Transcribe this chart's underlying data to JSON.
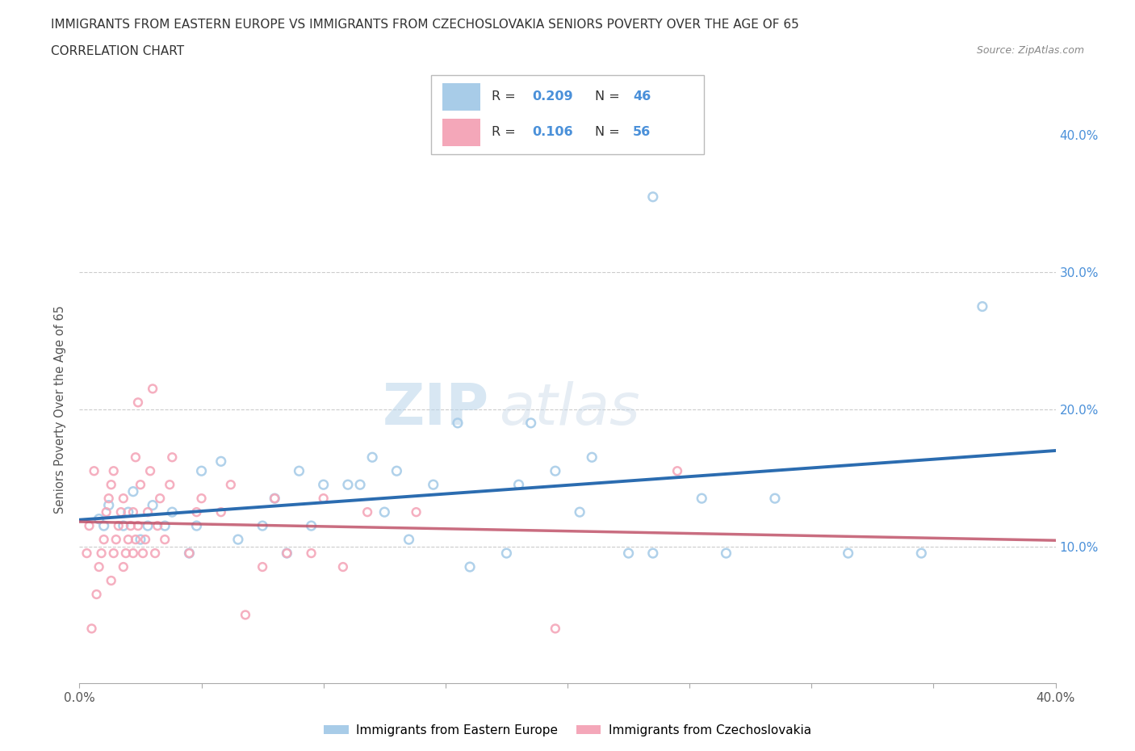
{
  "title_line1": "IMMIGRANTS FROM EASTERN EUROPE VS IMMIGRANTS FROM CZECHOSLOVAKIA SENIORS POVERTY OVER THE AGE OF 65",
  "title_line2": "CORRELATION CHART",
  "source": "Source: ZipAtlas.com",
  "ylabel": "Seniors Poverty Over the Age of 65",
  "xlim": [
    0.0,
    0.4
  ],
  "ylim": [
    0.0,
    0.4
  ],
  "blue_color": "#a8cce8",
  "pink_color": "#f4a7b9",
  "blue_line_color": "#2b6cb0",
  "pink_line_color": "#c0546a",
  "blue_R": 0.209,
  "blue_N": 46,
  "pink_R": 0.106,
  "pink_N": 56,
  "watermark_zip": "ZIP",
  "watermark_atlas": "atlas",
  "legend_label_blue": "Immigrants from Eastern Europe",
  "legend_label_pink": "Immigrants from Czechoslovakia",
  "blue_scatter": [
    [
      0.008,
      0.12
    ],
    [
      0.01,
      0.115
    ],
    [
      0.012,
      0.13
    ],
    [
      0.018,
      0.115
    ],
    [
      0.02,
      0.125
    ],
    [
      0.022,
      0.14
    ],
    [
      0.025,
      0.105
    ],
    [
      0.028,
      0.115
    ],
    [
      0.03,
      0.13
    ],
    [
      0.035,
      0.115
    ],
    [
      0.038,
      0.125
    ],
    [
      0.045,
      0.095
    ],
    [
      0.048,
      0.115
    ],
    [
      0.05,
      0.155
    ],
    [
      0.058,
      0.162
    ],
    [
      0.065,
      0.105
    ],
    [
      0.075,
      0.115
    ],
    [
      0.08,
      0.135
    ],
    [
      0.085,
      0.095
    ],
    [
      0.09,
      0.155
    ],
    [
      0.095,
      0.115
    ],
    [
      0.1,
      0.145
    ],
    [
      0.11,
      0.145
    ],
    [
      0.115,
      0.145
    ],
    [
      0.12,
      0.165
    ],
    [
      0.125,
      0.125
    ],
    [
      0.13,
      0.155
    ],
    [
      0.135,
      0.105
    ],
    [
      0.145,
      0.145
    ],
    [
      0.155,
      0.19
    ],
    [
      0.16,
      0.085
    ],
    [
      0.175,
      0.095
    ],
    [
      0.18,
      0.145
    ],
    [
      0.185,
      0.19
    ],
    [
      0.195,
      0.155
    ],
    [
      0.205,
      0.125
    ],
    [
      0.21,
      0.165
    ],
    [
      0.225,
      0.095
    ],
    [
      0.235,
      0.095
    ],
    [
      0.255,
      0.135
    ],
    [
      0.265,
      0.095
    ],
    [
      0.285,
      0.135
    ],
    [
      0.315,
      0.095
    ],
    [
      0.345,
      0.095
    ],
    [
      0.235,
      0.355
    ],
    [
      0.37,
      0.275
    ]
  ],
  "pink_scatter": [
    [
      0.003,
      0.095
    ],
    [
      0.004,
      0.115
    ],
    [
      0.005,
      0.04
    ],
    [
      0.006,
      0.155
    ],
    [
      0.007,
      0.065
    ],
    [
      0.008,
      0.085
    ],
    [
      0.009,
      0.095
    ],
    [
      0.01,
      0.105
    ],
    [
      0.011,
      0.125
    ],
    [
      0.012,
      0.135
    ],
    [
      0.013,
      0.145
    ],
    [
      0.014,
      0.155
    ],
    [
      0.013,
      0.075
    ],
    [
      0.014,
      0.095
    ],
    [
      0.015,
      0.105
    ],
    [
      0.016,
      0.115
    ],
    [
      0.017,
      0.125
    ],
    [
      0.018,
      0.135
    ],
    [
      0.018,
      0.085
    ],
    [
      0.019,
      0.095
    ],
    [
      0.02,
      0.105
    ],
    [
      0.021,
      0.115
    ],
    [
      0.022,
      0.125
    ],
    [
      0.023,
      0.165
    ],
    [
      0.024,
      0.205
    ],
    [
      0.022,
      0.095
    ],
    [
      0.023,
      0.105
    ],
    [
      0.024,
      0.115
    ],
    [
      0.025,
      0.145
    ],
    [
      0.026,
      0.095
    ],
    [
      0.027,
      0.105
    ],
    [
      0.028,
      0.125
    ],
    [
      0.029,
      0.155
    ],
    [
      0.03,
      0.215
    ],
    [
      0.031,
      0.095
    ],
    [
      0.032,
      0.115
    ],
    [
      0.033,
      0.135
    ],
    [
      0.035,
      0.105
    ],
    [
      0.037,
      0.145
    ],
    [
      0.038,
      0.165
    ],
    [
      0.045,
      0.095
    ],
    [
      0.048,
      0.125
    ],
    [
      0.05,
      0.135
    ],
    [
      0.058,
      0.125
    ],
    [
      0.062,
      0.145
    ],
    [
      0.068,
      0.05
    ],
    [
      0.075,
      0.085
    ],
    [
      0.08,
      0.135
    ],
    [
      0.085,
      0.095
    ],
    [
      0.095,
      0.095
    ],
    [
      0.1,
      0.135
    ],
    [
      0.108,
      0.085
    ],
    [
      0.118,
      0.125
    ],
    [
      0.138,
      0.125
    ],
    [
      0.195,
      0.04
    ],
    [
      0.245,
      0.155
    ]
  ],
  "blue_marker_size": 60,
  "pink_marker_size": 50
}
